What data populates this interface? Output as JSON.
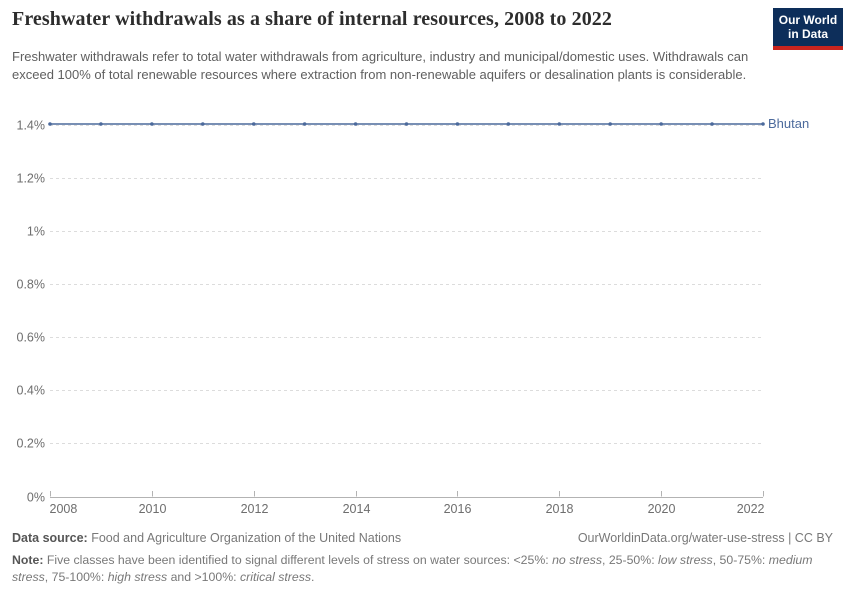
{
  "header": {
    "title": "Freshwater withdrawals as a share of internal resources, 2008 to 2022",
    "subtitle": "Freshwater withdrawals refer to total water withdrawals from agriculture, industry and municipal/domestic uses. Withdrawals can exceed 100% of total renewable resources where extraction from non-renewable aquifers or desalination plants is considerable.",
    "logo": {
      "line1": "Our World",
      "line2": "in Data",
      "background_color": "#0d2e5a",
      "stripe_color": "#c9241e"
    }
  },
  "chart_data": {
    "type": "line",
    "title": "Freshwater withdrawals as a share of internal resources, 2008 to 2022",
    "xlabel": "",
    "ylabel": "",
    "unit": "%",
    "x": [
      2008,
      2009,
      2010,
      2011,
      2012,
      2013,
      2014,
      2015,
      2016,
      2017,
      2018,
      2019,
      2020,
      2021,
      2022
    ],
    "series": [
      {
        "name": "Bhutan",
        "color": "#4C6A9C",
        "values": [
          1.4,
          1.4,
          1.4,
          1.4,
          1.4,
          1.4,
          1.4,
          1.4,
          1.4,
          1.4,
          1.4,
          1.4,
          1.4,
          1.4,
          1.4
        ]
      }
    ],
    "xlim": [
      2008,
      2022
    ],
    "ylim": [
      0,
      1.4
    ],
    "x_ticks": [
      2008,
      2010,
      2012,
      2014,
      2016,
      2018,
      2020,
      2022
    ],
    "y_ticks": [
      0,
      0.2,
      0.4,
      0.6,
      0.8,
      1,
      1.2,
      1.4
    ],
    "y_tick_labels": [
      "0%",
      "0.2%",
      "0.4%",
      "0.6%",
      "0.8%",
      "1%",
      "1.2%",
      "1.4%"
    ],
    "grid": "horizontal-dashed",
    "legend_position": "line-end-label",
    "colors": {
      "gridline": "#dcdcdc",
      "axis": "#b3b3b3",
      "tick_label": "#6e6e6e"
    }
  },
  "footer": {
    "source_label": "Data source:",
    "source_text": " Food and Agriculture Organization of the United Nations",
    "link_text": "OurWorldinData.org/water-use-stress | CC BY",
    "note_label": "Note:",
    "note_segments": [
      {
        "text": " Five classes have been identified to signal different levels of stress on water sources: <25%: ",
        "italic": false
      },
      {
        "text": "no stress",
        "italic": true
      },
      {
        "text": ", 25-50%: ",
        "italic": false
      },
      {
        "text": "low stress",
        "italic": true
      },
      {
        "text": ", 50-75%: ",
        "italic": false
      },
      {
        "text": "medium stress",
        "italic": true
      },
      {
        "text": ", 75-100%: ",
        "italic": false
      },
      {
        "text": "high stress",
        "italic": true
      },
      {
        "text": " and >100%: ",
        "italic": false
      },
      {
        "text": "critical stress",
        "italic": true
      },
      {
        "text": ".",
        "italic": false
      }
    ]
  }
}
